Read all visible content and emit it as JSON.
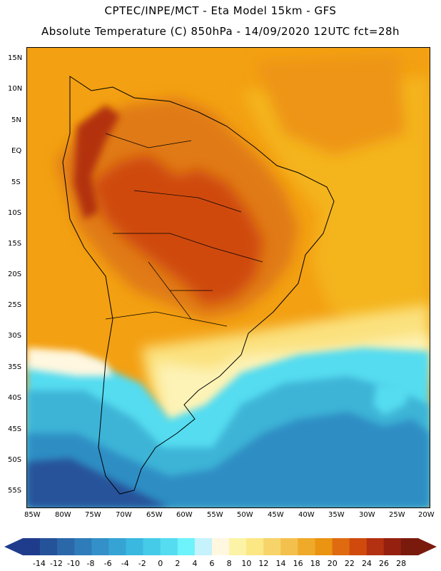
{
  "header": {
    "title_line1": "CPTEC/INPE/MCT -  Eta Model 15km - GFS",
    "title_line2": "Absolute Temperature (C) 850hPa - 14/09/2020 12UTC fct=28h"
  },
  "map": {
    "lat_labels": [
      "15N",
      "10N",
      "5N",
      "EQ",
      "5S",
      "10S",
      "15S",
      "20S",
      "25S",
      "30S",
      "35S",
      "40S",
      "45S",
      "50S",
      "55S"
    ],
    "lon_labels": [
      "85W",
      "80W",
      "75W",
      "70W",
      "65W",
      "60W",
      "55W",
      "50W",
      "45W",
      "40W",
      "35W",
      "30W",
      "25W",
      "20W"
    ],
    "colors": {
      "darkest_red": "#7a1a0c",
      "dark_red": "#b33010",
      "red_orange": "#cf4a0c",
      "orange": "#e06a10",
      "light_orange": "#ee8c14",
      "amber": "#f3a012",
      "gold": "#f4b41c",
      "yellow": "#fbe17e",
      "pale_yellow": "#fdf3b6",
      "cream": "#fff7df",
      "cyan": "#55dcf0",
      "light_blue": "#3cb4d6",
      "mid_blue": "#2f8ec4",
      "dark_blue": "#25539a"
    }
  },
  "colorbar": {
    "labels": [
      "-14",
      "-12",
      "-10",
      "-8",
      "-6",
      "-4",
      "-2",
      "0",
      "2",
      "4",
      "6",
      "8",
      "10",
      "12",
      "14",
      "16",
      "18",
      "20",
      "22",
      "24",
      "26",
      "28"
    ],
    "colors": [
      "#1f3c8c",
      "#25539a",
      "#2b68aa",
      "#2f7cba",
      "#3390c8",
      "#35a4d4",
      "#3ab8df",
      "#45cae8",
      "#55dcf0",
      "#6ef2fb",
      "#c6f2fb",
      "#fff7df",
      "#fdf3a6",
      "#fbe784",
      "#f7d46a",
      "#f3c04e",
      "#efaa2a",
      "#ea9412",
      "#e06a10",
      "#cf4a0c",
      "#b33010",
      "#952010",
      "#7a1a0c"
    ]
  }
}
